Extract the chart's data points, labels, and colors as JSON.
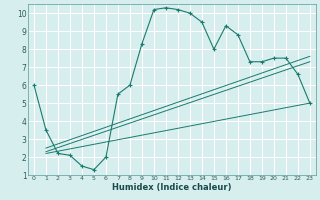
{
  "xlabel": "Humidex (Indice chaleur)",
  "bg_color": "#d6eeee",
  "grid_color": "#b0d8d8",
  "line_color": "#1a7a6e",
  "xlim": [
    -0.5,
    23.5
  ],
  "ylim": [
    1,
    10.5
  ],
  "xticks": [
    0,
    1,
    2,
    3,
    4,
    5,
    6,
    7,
    8,
    9,
    10,
    11,
    12,
    13,
    14,
    15,
    16,
    17,
    18,
    19,
    20,
    21,
    22,
    23
  ],
  "yticks": [
    1,
    2,
    3,
    4,
    5,
    6,
    7,
    8,
    9,
    10
  ],
  "main_x": [
    0,
    1,
    2,
    3,
    4,
    5,
    6,
    7,
    8,
    9,
    10,
    11,
    12,
    13,
    14,
    15,
    16,
    17,
    18,
    19,
    20,
    21,
    22,
    23
  ],
  "main_y": [
    6.0,
    3.5,
    2.2,
    2.1,
    1.5,
    1.3,
    2.0,
    5.5,
    6.0,
    8.3,
    10.2,
    10.3,
    10.2,
    10.0,
    9.5,
    8.0,
    9.3,
    8.8,
    7.3,
    7.3,
    7.5,
    7.5,
    6.6,
    5.0
  ],
  "line1_x": [
    1,
    23
  ],
  "line1_y": [
    2.2,
    5.0
  ],
  "line2_x": [
    1,
    23
  ],
  "line2_y": [
    2.3,
    7.3
  ],
  "line3_x": [
    1,
    23
  ],
  "line3_y": [
    2.5,
    7.6
  ]
}
